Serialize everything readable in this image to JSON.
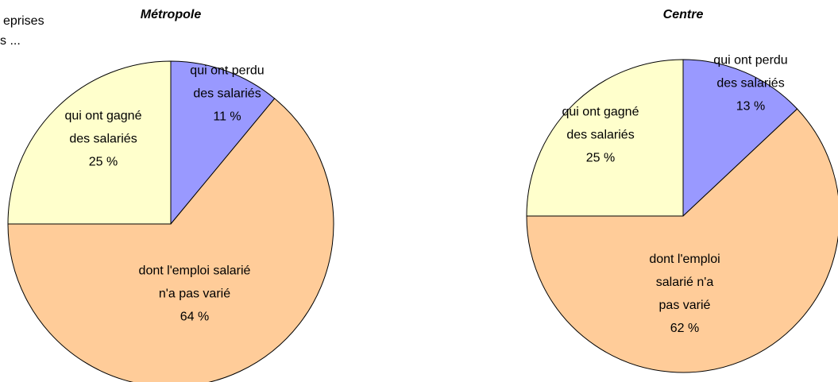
{
  "note_lines": [
    "eprises",
    "s ..."
  ],
  "chart_data": [
    {
      "type": "pie",
      "title": "Métropole",
      "categories": [
        "qui ont perdu des salariés",
        "dont l'emploi salarié n'a pas varié",
        "qui ont gagné des salariés"
      ],
      "values": [
        11,
        64,
        25
      ],
      "value_labels": [
        "11 %",
        "64 %",
        "25 %"
      ],
      "colors": [
        "#9999ff",
        "#ffcc99",
        "#ffffcc"
      ]
    },
    {
      "type": "pie",
      "title": "Centre",
      "categories": [
        "qui ont perdu des salariés",
        "dont l'emploi salarié n'a pas varié",
        "qui ont gagné des salariés"
      ],
      "values": [
        13,
        62,
        25
      ],
      "value_labels": [
        "13 %",
        "62 %",
        "25 %"
      ],
      "colors": [
        "#9999ff",
        "#ffcc99",
        "#ffffcc"
      ]
    }
  ]
}
